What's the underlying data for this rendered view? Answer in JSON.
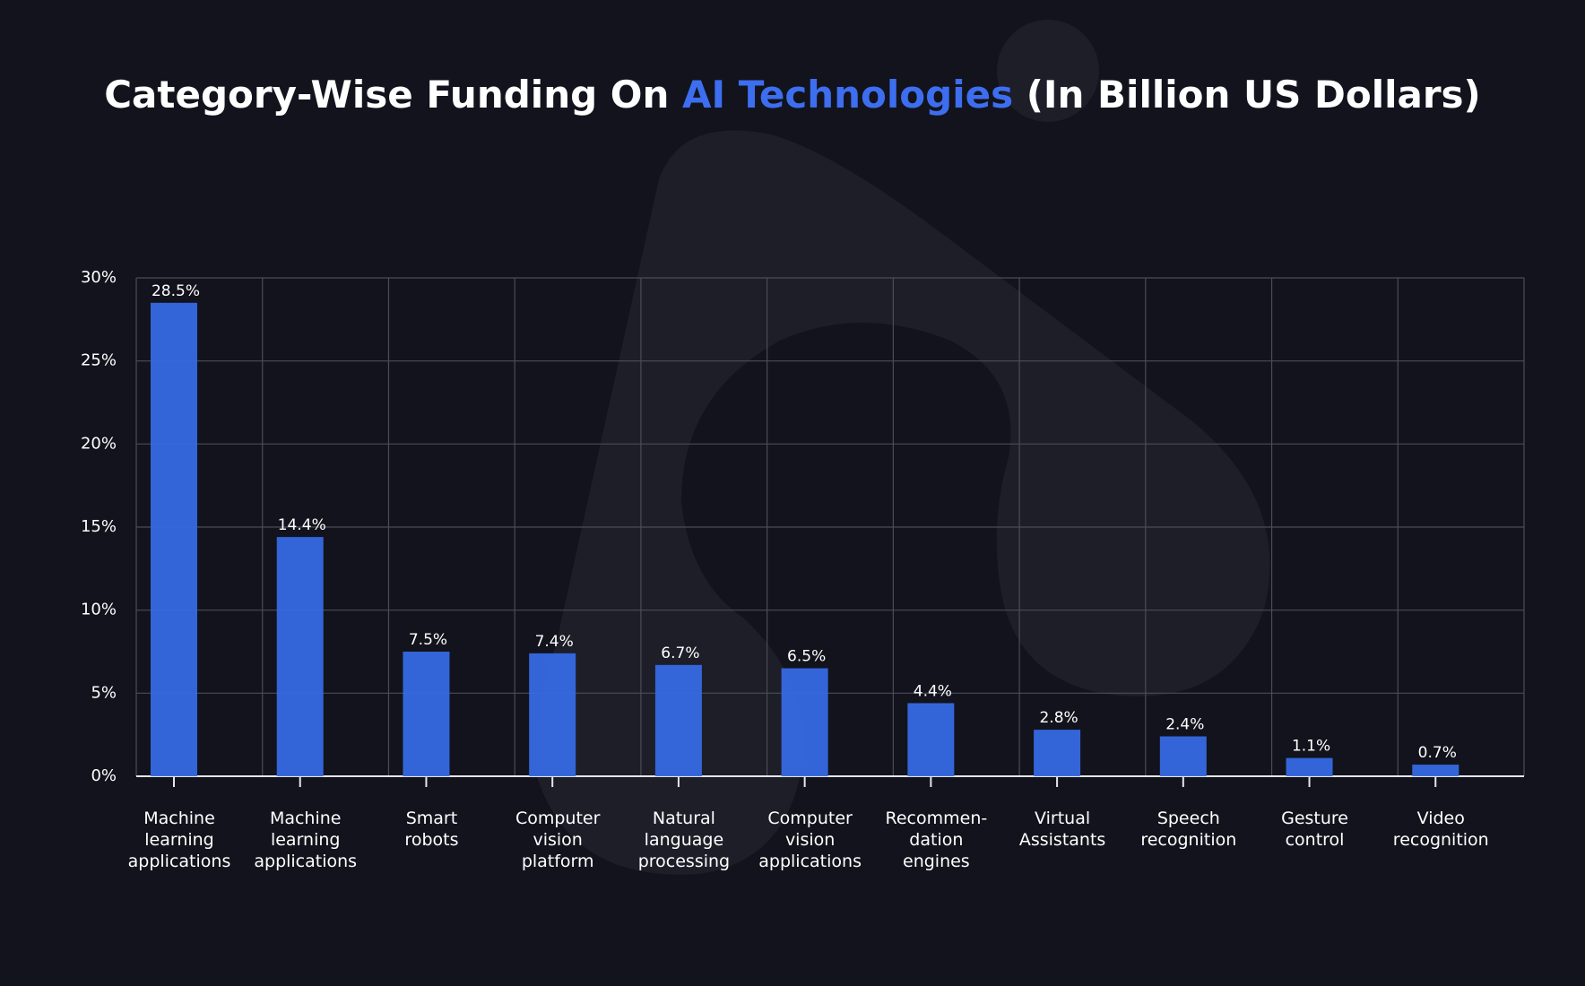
{
  "chart_data": {
    "type": "bar",
    "title": [
      "Category-Wise Funding On ",
      "AI Technologies",
      " (In Billion US Dollars)"
    ],
    "title_colors": [
      "#ffffff",
      "#3d6ef0",
      "#ffffff"
    ],
    "categories": [
      "Machine\nlearning\napplications",
      "Machine\nlearning\napplications",
      "Smart\nrobots",
      "Computer\nvision\nplatform",
      "Natural\nlanguage\nprocessing",
      "Computer\nvision\napplications",
      "Recommen-\ndation\nengines",
      "Virtual\nAssistants",
      "Speech\nrecognition",
      "Gesture\ncontrol",
      "Video\nrecognition"
    ],
    "values": [
      28.5,
      14.4,
      7.5,
      7.4,
      6.7,
      6.5,
      4.4,
      2.8,
      2.4,
      1.1,
      0.7
    ],
    "value_labels": [
      "28.5%",
      "14.4%",
      "7.5%",
      "7.4%",
      "6.7%",
      "6.5%",
      "4.4%",
      "2.8%",
      "2.4%",
      "1.1%",
      "0.7%"
    ],
    "color": "#3669e3",
    "ylim": [
      0,
      30
    ],
    "yticks": [
      {
        "value": 0,
        "label": "0%"
      },
      {
        "value": 5,
        "label": "5%"
      },
      {
        "value": 10,
        "label": "10%"
      },
      {
        "value": 15,
        "label": "15%"
      },
      {
        "value": 20,
        "label": "20%"
      },
      {
        "value": 25,
        "label": "25%"
      },
      {
        "value": 30,
        "label": "30%"
      }
    ],
    "grid": true
  }
}
